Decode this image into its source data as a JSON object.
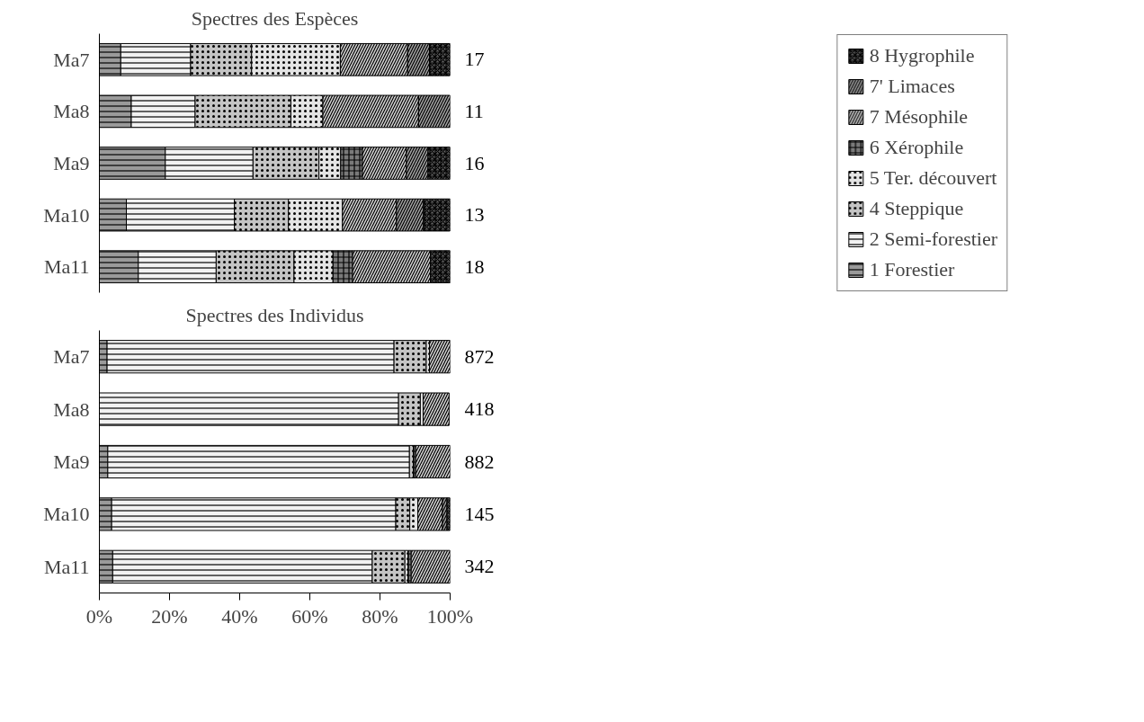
{
  "chart_data": [
    {
      "type": "bar",
      "orientation": "horizontal",
      "stacked": true,
      "title": "Spectres des Espèces",
      "categories": [
        "Ma7",
        "Ma8",
        "Ma9",
        "Ma10",
        "Ma11"
      ],
      "xlim": [
        0,
        100
      ],
      "tick_labels": "y",
      "legend": "right",
      "grid": false,
      "annotations": [
        "17",
        "11",
        "16",
        "13",
        "18"
      ],
      "series": [
        {
          "name": "1 Forestier",
          "color": "#9a9a9a",
          "values": [
            6.1,
            9.1,
            18.8,
            7.7,
            11.1
          ]
        },
        {
          "name": "2 Semi-forestier",
          "color": "#f2f2f2",
          "values": [
            19.9,
            18.2,
            25,
            30.8,
            22.2
          ]
        },
        {
          "name": "4 Steppique",
          "color": "#c4c4c4",
          "values": [
            17.4,
            27.3,
            18.8,
            15.4,
            22.2
          ]
        },
        {
          "name": "5 Ter. découvert",
          "color": "#e4e4e4",
          "values": [
            25.3,
            9.1,
            6.2,
            15.4,
            11.1
          ]
        },
        {
          "name": "6 Xérophile",
          "color": "#7a7a7a",
          "values": [
            null,
            null,
            6.2,
            null,
            5.6
          ]
        },
        {
          "name": "7 Mésophile",
          "color": "#d0d0d0",
          "values": [
            19.2,
            27.3,
            12.5,
            15.4,
            22.2
          ]
        },
        {
          "name": "7' Limaces",
          "color": "#a0a0a0",
          "values": [
            6.2,
            9.1,
            6.2,
            7.7,
            null
          ]
        },
        {
          "name": "8 Hygrophile",
          "color": "#606060",
          "values": [
            5.9,
            null,
            6.3,
            7.7,
            5.6
          ]
        }
      ]
    },
    {
      "type": "bar",
      "orientation": "horizontal",
      "stacked": true,
      "title": "Spectres des Individus",
      "categories": [
        "Ma7",
        "Ma8",
        "Ma9",
        "Ma10",
        "Ma11"
      ],
      "xlim": [
        0,
        100
      ],
      "xticks": [
        {
          "value": 0,
          "label": "0%"
        },
        {
          "value": 20,
          "label": "20%"
        },
        {
          "value": 40,
          "label": "40%"
        },
        {
          "value": 60,
          "label": "60%"
        },
        {
          "value": 80,
          "label": "80%"
        },
        {
          "value": 100,
          "label": "100%"
        }
      ],
      "grid": false,
      "annotations": [
        "872",
        "418",
        "882",
        "145",
        "342"
      ],
      "series": [
        {
          "color": "#9a9a9a",
          "values": [
            2.2,
            null,
            2.4,
            3.5,
            3.8
          ]
        },
        {
          "color": "#f2f2f2",
          "values": [
            81.8,
            85.3,
            86.0,
            81.0,
            74.0
          ]
        },
        {
          "color": "#c4c4c4",
          "values": [
            9.2,
            6.2,
            1.1,
            4.0,
            9.3
          ]
        },
        {
          "color": "#e4e4e4",
          "values": [
            0.9,
            0.8,
            null,
            2.3,
            0.9
          ]
        },
        {
          "color": "#7a7a7a",
          "values": [
            null,
            null,
            0.7,
            null,
            0.9
          ]
        },
        {
          "color": "#d0d0d0",
          "values": [
            5.9,
            7.4,
            9.8,
            7.0,
            11.1
          ]
        },
        {
          "color": "#a0a0a0",
          "values": [
            null,
            null,
            null,
            1.3,
            null
          ]
        },
        {
          "color": "#606060",
          "values": [
            null,
            null,
            null,
            0.9,
            null
          ]
        }
      ]
    }
  ]
}
